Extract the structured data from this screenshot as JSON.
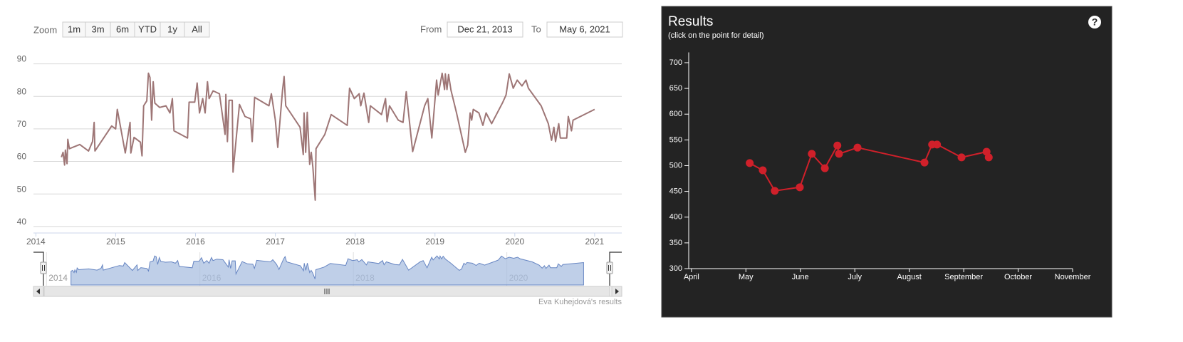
{
  "chart_data": [
    {
      "type": "line",
      "zoom_label": "Zoom",
      "zoom_buttons": [
        "1m",
        "3m",
        "6m",
        "YTD",
        "1y",
        "All"
      ],
      "range_from_label": "From",
      "range_from": "Dec 21, 2013",
      "range_to_label": "To",
      "range_to": "May 6, 2021",
      "credits": "Eva Kuhejdová's results",
      "color": "#9e7676",
      "x": [
        2014.32,
        2014.34,
        2014.36,
        2014.37,
        2014.39,
        2014.4,
        2014.42,
        2014.55,
        2014.66,
        2014.71,
        2014.73,
        2014.74,
        2014.95,
        2015.0,
        2015.02,
        2015.12,
        2015.18,
        2015.19,
        2015.23,
        2015.31,
        2015.33,
        2015.35,
        2015.39,
        2015.41,
        2015.43,
        2015.45,
        2015.47,
        2015.49,
        2015.55,
        2015.63,
        2015.68,
        2015.71,
        2015.73,
        2015.9,
        2015.92,
        2015.99,
        2016.02,
        2016.05,
        2016.09,
        2016.12,
        2016.15,
        2016.17,
        2016.22,
        2016.3,
        2016.37,
        2016.38,
        2016.4,
        2016.42,
        2016.46,
        2016.47,
        2016.51,
        2016.55,
        2016.62,
        2016.69,
        2016.71,
        2016.74,
        2016.92,
        2016.95,
        2017.0,
        2017.03,
        2017.09,
        2017.11,
        2017.13,
        2017.31,
        2017.35,
        2017.36,
        2017.38,
        2017.4,
        2017.43,
        2017.45,
        2017.47,
        2017.5,
        2017.51,
        2017.62,
        2017.7,
        2017.9,
        2017.93,
        2017.99,
        2018.05,
        2018.07,
        2018.11,
        2018.17,
        2018.19,
        2018.33,
        2018.38,
        2018.4,
        2018.43,
        2018.54,
        2018.6,
        2018.64,
        2018.72,
        2018.87,
        2018.91,
        2018.96,
        2019.02,
        2019.04,
        2019.09,
        2019.12,
        2019.13,
        2019.15,
        2019.17,
        2019.2,
        2019.27,
        2019.38,
        2019.41,
        2019.44,
        2019.46,
        2019.48,
        2019.55,
        2019.6,
        2019.64,
        2019.71,
        2019.85,
        2019.89,
        2019.93,
        2019.98,
        2020.03,
        2020.09,
        2020.14,
        2020.17,
        2020.33,
        2020.42,
        2020.46,
        2020.49,
        2020.51,
        2020.55,
        2020.57,
        2020.65,
        2020.67,
        2020.71,
        2020.73,
        2021.0
      ],
      "values": [
        61.3,
        62.8,
        58.9,
        63.5,
        59.3,
        66.8,
        63.9,
        65.2,
        63.2,
        66.1,
        72,
        63.2,
        70.9,
        70,
        76,
        62.6,
        72,
        62.6,
        67.4,
        65.9,
        61.7,
        77.1,
        78.6,
        87.1,
        85.8,
        72.7,
        84.5,
        77.9,
        76.6,
        77.1,
        74.9,
        79.3,
        69.4,
        67.2,
        78.2,
        78.2,
        84.1,
        74.9,
        79.3,
        74.9,
        84.5,
        79.3,
        81.7,
        80.8,
        68.3,
        80.6,
        66.1,
        78.8,
        78.8,
        56.7,
        67.2,
        77.5,
        73.8,
        73.1,
        66.1,
        79.7,
        77.1,
        80.8,
        72.7,
        64.3,
        81.9,
        86.1,
        77.1,
        70.5,
        62.1,
        74.9,
        62.8,
        75.1,
        59.1,
        62.8,
        58.2,
        48.1,
        63.9,
        68.3,
        74.4,
        71.1,
        82.5,
        79.3,
        80.8,
        77.1,
        81,
        72,
        77.1,
        74.4,
        79.3,
        72.2,
        77.1,
        72.7,
        72,
        81.4,
        63,
        77.1,
        79.3,
        67.2,
        85,
        80.4,
        87.1,
        82.1,
        86.9,
        82.1,
        86.7,
        81.9,
        74.9,
        62.8,
        65,
        74.9,
        72.7,
        76,
        74.9,
        71.1,
        74.9,
        71.6,
        78.2,
        80.4,
        86.9,
        82.5,
        85,
        83.2,
        85,
        82.5,
        77.1,
        71.6,
        66.5,
        70.5,
        66.1,
        71.6,
        67.2,
        67.2,
        73.8,
        69.4,
        72.7,
        76
      ],
      "xlim": [
        2013.97,
        2021.34
      ],
      "xticks": [
        2014,
        2015,
        2016,
        2017,
        2018,
        2019,
        2020,
        2021
      ],
      "ylim": [
        38,
        91
      ],
      "yticks": [
        40,
        50,
        60,
        70,
        80,
        90
      ],
      "grid": true,
      "navigator": {
        "xticks": [
          2014,
          2016,
          2018,
          2020
        ],
        "color": "#a9bfe0"
      }
    },
    {
      "type": "line",
      "title": "Results",
      "subtitle": "(click on the point for detail)",
      "help_icon": "?",
      "color": "#d0202a",
      "markers": true,
      "x": [
        5.07,
        5.31,
        5.53,
        5.99,
        6.21,
        6.45,
        6.68,
        6.71,
        7.05,
        8.28,
        8.42,
        8.51,
        8.96,
        9.42,
        9.46
      ],
      "values": [
        505,
        491,
        451,
        458,
        523,
        495,
        539,
        523,
        535,
        506,
        541,
        541,
        516,
        527,
        516
      ],
      "xlim": [
        3.95,
        11
      ],
      "xticks": [
        {
          "value": 4,
          "label": "April"
        },
        {
          "value": 5,
          "label": "May"
        },
        {
          "value": 6,
          "label": "June"
        },
        {
          "value": 7,
          "label": "July"
        },
        {
          "value": 8,
          "label": "August"
        },
        {
          "value": 9,
          "label": "September"
        },
        {
          "value": 10,
          "label": "October"
        },
        {
          "value": 11,
          "label": "November"
        }
      ],
      "ylim": [
        300,
        720
      ],
      "yticks": [
        300,
        350,
        400,
        450,
        500,
        550,
        600,
        650,
        700
      ]
    }
  ]
}
